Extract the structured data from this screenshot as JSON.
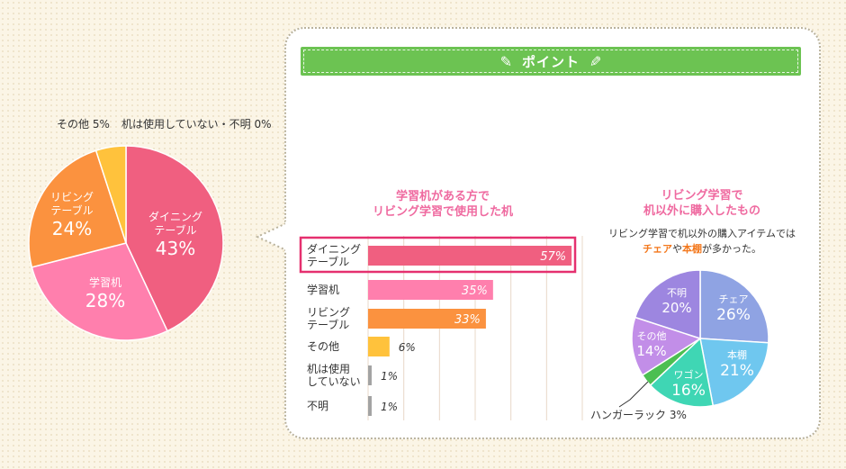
{
  "colors": {
    "dining": "#f05f80",
    "study_desk": "#ff7fad",
    "living_table": "#fb923f",
    "other": "#ffc23c",
    "unused": "#a3a3a3",
    "highlight_border": "#e5306f",
    "banner": "#6cc352",
    "chair": "#8fa3e3",
    "shelf": "#6fc7ef",
    "wagon": "#3fd6b4",
    "hanger": "#4cbf52",
    "other_purple": "#c28ee8",
    "unknown_purple": "#9d86e0"
  },
  "banner": {
    "title": "ポイント",
    "icon_left": "pencil-icon",
    "icon_right": "pencil-icon"
  },
  "left_pie": {
    "top_labels": {
      "other": "その他 5%",
      "unused": "机は使用していない・不明 0%"
    },
    "slice_labels": {
      "dining": {
        "line1": "ダイニング",
        "line2": "テーブル",
        "pct": "43%"
      },
      "study_desk": {
        "line1": "学習机",
        "pct": "28%"
      },
      "living_table": {
        "line1": "リビング",
        "line2": "テーブル",
        "pct": "24%"
      }
    }
  },
  "bar_section": {
    "title_line1": "学習机がある方で",
    "title_line2": "リビング学習で使用した机",
    "rows": [
      {
        "label1": "ダイニング",
        "label2": "テーブル",
        "value_text": "57%"
      },
      {
        "label1": "学習机",
        "label2": "",
        "value_text": "35%"
      },
      {
        "label1": "リビング",
        "label2": "テーブル",
        "value_text": "33%"
      },
      {
        "label1": "その他",
        "label2": "",
        "value_text": "6%"
      },
      {
        "label1": "机は使用",
        "label2": "していない",
        "value_text": "1%"
      },
      {
        "label1": "不明",
        "label2": "",
        "value_text": "1%"
      }
    ]
  },
  "right_section": {
    "title_line1": "リビング学習で",
    "title_line2": "机以外に購入したもの",
    "sub_line1": "リビング学習で机以外の購入アイテムでは",
    "sub_hl1": "チェア",
    "sub_mid": "や",
    "sub_hl2": "本棚",
    "sub_end": "が多かった。",
    "slice_labels": {
      "chair": {
        "line1": "チェア",
        "pct": "26%"
      },
      "shelf": {
        "line1": "本棚",
        "pct": "21%"
      },
      "wagon": {
        "line1": "ワゴン",
        "pct": "16%"
      },
      "other": {
        "line1": "その他",
        "pct": "14%"
      },
      "unknown": {
        "line1": "不明",
        "pct": "20%"
      }
    },
    "hanger_label": "ハンガーラック 3%"
  },
  "chart_data": [
    {
      "type": "pie",
      "title": "",
      "categories": [
        "ダイニングテーブル",
        "学習机",
        "リビングテーブル",
        "その他",
        "机は使用していない・不明"
      ],
      "values": [
        43,
        28,
        24,
        5,
        0
      ]
    },
    {
      "type": "bar",
      "title": "学習机がある方で リビング学習で使用した机",
      "categories": [
        "ダイニングテーブル",
        "学習机",
        "リビングテーブル",
        "その他",
        "机は使用していない",
        "不明"
      ],
      "values": [
        57,
        35,
        33,
        6,
        1,
        1
      ],
      "xlim": [
        0,
        60
      ],
      "grid": true
    },
    {
      "type": "pie",
      "title": "リビング学習で 机以外に購入したもの",
      "categories": [
        "チェア",
        "本棚",
        "ワゴン",
        "ハンガーラック",
        "その他",
        "不明"
      ],
      "values": [
        26,
        21,
        16,
        3,
        14,
        20
      ]
    }
  ]
}
